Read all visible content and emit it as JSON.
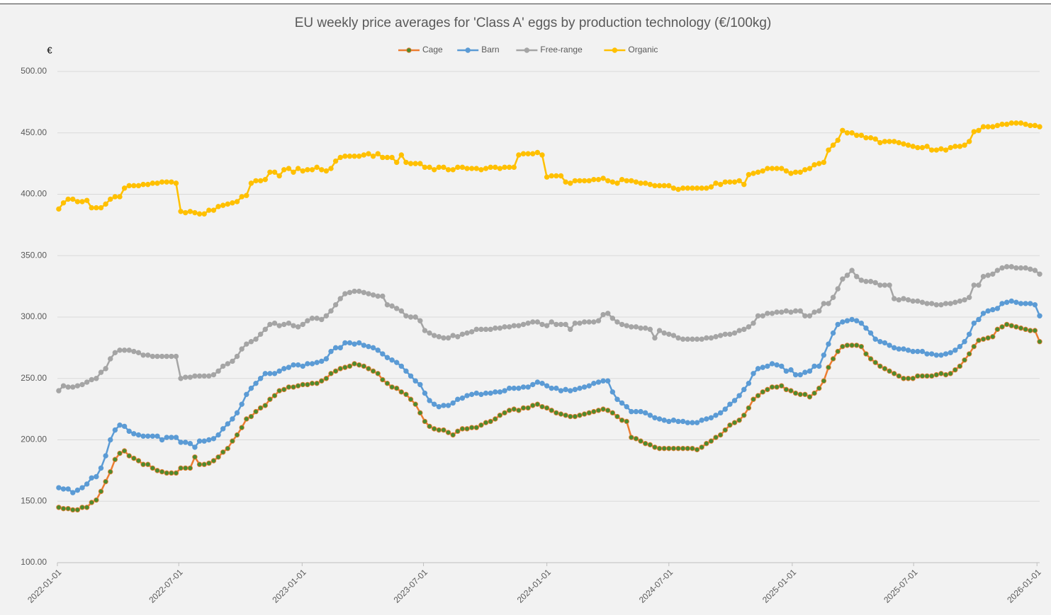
{
  "chart_data": {
    "type": "line",
    "title": "EU weekly price averages for 'Class A' eggs by production technology (€/100kg)",
    "y_label": "€",
    "legend": "top",
    "grid": true,
    "x": [
      "2022-01-03",
      "2022-01-10",
      "2022-01-17",
      "2022-01-24",
      "2022-01-31",
      "2022-02-07",
      "2022-02-14",
      "2022-02-21",
      "2022-02-28",
      "2022-03-07",
      "2022-03-14",
      "2022-03-21",
      "2022-03-28",
      "2022-04-04",
      "2022-04-11",
      "2022-04-18",
      "2022-04-25",
      "2022-05-02",
      "2022-05-09",
      "2022-05-16",
      "2022-05-23",
      "2022-05-30",
      "2022-06-06",
      "2022-06-13",
      "2022-06-20",
      "2022-06-27",
      "2022-07-04",
      "2022-07-11",
      "2022-07-18",
      "2022-07-25",
      "2022-08-01",
      "2022-08-08",
      "2022-08-15",
      "2022-08-22",
      "2022-08-29",
      "2022-09-05",
      "2022-09-12",
      "2022-09-19",
      "2022-09-26",
      "2022-10-03",
      "2022-10-10",
      "2022-10-17",
      "2022-10-24",
      "2022-10-31",
      "2022-11-07",
      "2022-11-14",
      "2022-11-21",
      "2022-11-28",
      "2022-12-05",
      "2022-12-12",
      "2022-12-19",
      "2022-12-26",
      "2023-01-02",
      "2023-01-09",
      "2023-01-16",
      "2023-01-23",
      "2023-01-30",
      "2023-02-06",
      "2023-02-13",
      "2023-02-20",
      "2023-02-27",
      "2023-03-06",
      "2023-03-13",
      "2023-03-20",
      "2023-03-27",
      "2023-04-03",
      "2023-04-10",
      "2023-04-17",
      "2023-04-24",
      "2023-05-01",
      "2023-05-08",
      "2023-05-15",
      "2023-05-22",
      "2023-05-29",
      "2023-06-05",
      "2023-06-12",
      "2023-06-19",
      "2023-06-26",
      "2023-07-03",
      "2023-07-10",
      "2023-07-17",
      "2023-07-24",
      "2023-07-31",
      "2023-08-07",
      "2023-08-14",
      "2023-08-21",
      "2023-08-28",
      "2023-09-04",
      "2023-09-11",
      "2023-09-18",
      "2023-09-25",
      "2023-10-02",
      "2023-10-09",
      "2023-10-16",
      "2023-10-23",
      "2023-10-30",
      "2023-11-06",
      "2023-11-13",
      "2023-11-20",
      "2023-11-27",
      "2023-12-04",
      "2023-12-11",
      "2023-12-18",
      "2023-12-25",
      "2024-01-01",
      "2024-01-08",
      "2024-01-15",
      "2024-01-22",
      "2024-01-29",
      "2024-02-05",
      "2024-02-12",
      "2024-02-19",
      "2024-02-26",
      "2024-03-04",
      "2024-03-11",
      "2024-03-18",
      "2024-03-25",
      "2024-04-01",
      "2024-04-08",
      "2024-04-15",
      "2024-04-22",
      "2024-04-29",
      "2024-05-06",
      "2024-05-13",
      "2024-05-20",
      "2024-05-27",
      "2024-06-03",
      "2024-06-10",
      "2024-06-17",
      "2024-06-24",
      "2024-07-01",
      "2024-07-08",
      "2024-07-15",
      "2024-07-22",
      "2024-07-29",
      "2024-08-05",
      "2024-08-12",
      "2024-08-19",
      "2024-08-26",
      "2024-09-02",
      "2024-09-09",
      "2024-09-16",
      "2024-09-23",
      "2024-09-30",
      "2024-10-07",
      "2024-10-14",
      "2024-10-21",
      "2024-10-28",
      "2024-11-04",
      "2024-11-11",
      "2024-11-18",
      "2024-11-25",
      "2024-12-02",
      "2024-12-09",
      "2024-12-16",
      "2024-12-23",
      "2024-12-30",
      "2025-01-06",
      "2025-01-13",
      "2025-01-20",
      "2025-01-27",
      "2025-02-03",
      "2025-02-10",
      "2025-02-17",
      "2025-02-24",
      "2025-03-03",
      "2025-03-10",
      "2025-03-17",
      "2025-03-24",
      "2025-03-31",
      "2025-04-07",
      "2025-04-14",
      "2025-04-21",
      "2025-04-28",
      "2025-05-05",
      "2025-05-12",
      "2025-05-19",
      "2025-05-26",
      "2025-06-02",
      "2025-06-09",
      "2025-06-16",
      "2025-06-23",
      "2025-06-30",
      "2025-07-07",
      "2025-07-14",
      "2025-07-21",
      "2025-07-28",
      "2025-08-04",
      "2025-08-11",
      "2025-08-18",
      "2025-08-25",
      "2025-09-01",
      "2025-09-08",
      "2025-09-15",
      "2025-09-22",
      "2025-09-29",
      "2025-10-06",
      "2025-10-13",
      "2025-10-20",
      "2025-10-27",
      "2025-11-03",
      "2025-11-10",
      "2025-11-17",
      "2025-11-24",
      "2025-12-01",
      "2025-12-08",
      "2025-12-15",
      "2025-12-22",
      "2025-12-29",
      "2026-01-05"
    ],
    "series": [
      {
        "name": "Cage",
        "color": "#ed7d31",
        "marker_color": "#4e8a2e",
        "values": [
          145,
          144,
          144,
          143,
          143,
          145,
          145,
          149,
          151,
          158,
          166,
          174,
          184,
          189,
          191,
          187,
          185,
          183,
          180,
          180,
          177,
          175,
          174,
          173,
          173,
          173,
          177,
          177,
          177,
          186,
          180,
          180,
          181,
          183,
          186,
          190,
          193,
          199,
          204,
          210,
          217,
          219,
          223,
          226,
          228,
          233,
          236,
          240,
          241,
          243,
          243,
          244,
          245,
          245,
          246,
          246,
          248,
          250,
          254,
          256,
          258,
          259,
          260,
          262,
          261,
          260,
          258,
          256,
          254,
          249,
          246,
          243,
          242,
          239,
          237,
          233,
          229,
          222,
          215,
          211,
          209,
          208,
          208,
          206,
          204,
          207,
          209,
          209,
          210,
          210,
          212,
          214,
          215,
          217,
          220,
          222,
          224,
          225,
          224,
          226,
          226,
          228,
          229,
          227,
          226,
          224,
          222,
          221,
          220,
          219,
          219,
          220,
          221,
          222,
          223,
          224,
          225,
          224,
          222,
          219,
          216,
          215,
          202,
          201,
          199,
          197,
          196,
          194,
          193,
          193,
          193,
          193,
          193,
          193,
          193,
          193,
          192,
          194,
          197,
          199,
          202,
          204,
          208,
          212,
          214,
          216,
          220,
          226,
          233,
          236,
          239,
          241,
          243,
          243,
          244,
          241,
          240,
          238,
          237,
          237,
          235,
          238,
          242,
          248,
          259,
          266,
          272,
          276,
          277,
          277,
          277,
          276,
          270,
          266,
          263,
          260,
          258,
          256,
          254,
          252,
          250,
          250,
          250,
          252,
          252,
          252,
          252,
          253,
          254,
          253,
          254,
          257,
          260,
          265,
          270,
          276,
          281,
          282,
          283,
          284,
          290,
          292,
          294,
          293,
          292,
          291,
          290,
          289,
          289,
          280
        ]
      },
      {
        "name": "Barn",
        "color": "#5b9bd5",
        "marker_color": "#5b9bd5",
        "values": [
          161,
          160,
          160,
          157,
          159,
          161,
          164,
          169,
          170,
          177,
          187,
          200,
          208,
          212,
          211,
          207,
          205,
          204,
          203,
          203,
          203,
          203,
          200,
          202,
          202,
          202,
          198,
          198,
          197,
          194,
          199,
          199,
          200,
          201,
          204,
          209,
          213,
          217,
          222,
          229,
          237,
          242,
          246,
          250,
          254,
          254,
          254,
          256,
          258,
          259,
          261,
          261,
          260,
          262,
          262,
          263,
          264,
          266,
          272,
          275,
          275,
          279,
          279,
          278,
          279,
          277,
          276,
          275,
          273,
          270,
          267,
          265,
          263,
          260,
          256,
          252,
          248,
          245,
          238,
          232,
          229,
          227,
          228,
          228,
          230,
          233,
          234,
          236,
          237,
          238,
          237,
          238,
          238,
          239,
          239,
          240,
          242,
          242,
          242,
          243,
          243,
          245,
          247,
          246,
          244,
          242,
          242,
          240,
          241,
          240,
          241,
          242,
          243,
          244,
          246,
          247,
          248,
          248,
          239,
          233,
          230,
          227,
          223,
          223,
          223,
          222,
          220,
          218,
          217,
          216,
          215,
          216,
          215,
          215,
          214,
          214,
          214,
          216,
          217,
          218,
          220,
          222,
          225,
          229,
          232,
          236,
          241,
          246,
          254,
          258,
          259,
          260,
          262,
          261,
          260,
          256,
          257,
          253,
          253,
          255,
          256,
          260,
          260,
          269,
          278,
          287,
          294,
          296,
          297,
          298,
          297,
          295,
          291,
          287,
          282,
          280,
          279,
          277,
          275,
          274,
          274,
          273,
          272,
          272,
          272,
          270,
          270,
          269,
          269,
          270,
          271,
          273,
          276,
          280,
          286,
          295,
          298,
          303,
          305,
          306,
          307,
          311,
          312,
          313,
          312,
          311,
          311,
          311,
          310,
          301
        ]
      },
      {
        "name": "Free-range",
        "color": "#a5a5a5",
        "marker_color": "#a5a5a5",
        "values": [
          240,
          244,
          243,
          243,
          244,
          245,
          247,
          249,
          250,
          255,
          258,
          266,
          271,
          273,
          273,
          273,
          272,
          271,
          269,
          269,
          268,
          268,
          268,
          268,
          268,
          268,
          250,
          251,
          251,
          252,
          252,
          252,
          252,
          253,
          256,
          260,
          262,
          264,
          268,
          274,
          278,
          280,
          282,
          286,
          290,
          294,
          295,
          293,
          294,
          295,
          293,
          292,
          294,
          297,
          299,
          299,
          298,
          301,
          305,
          310,
          315,
          319,
          320,
          321,
          321,
          320,
          319,
          318,
          317,
          317,
          310,
          309,
          307,
          305,
          301,
          300,
          300,
          297,
          289,
          287,
          285,
          284,
          283,
          283,
          285,
          284,
          286,
          287,
          288,
          290,
          290,
          290,
          290,
          291,
          291,
          292,
          292,
          293,
          293,
          294,
          295,
          296,
          296,
          294,
          293,
          296,
          294,
          294,
          294,
          290,
          295,
          295,
          296,
          296,
          296,
          297,
          302,
          303,
          299,
          296,
          294,
          293,
          292,
          292,
          291,
          291,
          290,
          283,
          289,
          287,
          286,
          285,
          283,
          282,
          282,
          282,
          282,
          282,
          283,
          283,
          284,
          285,
          286,
          286,
          287,
          289,
          290,
          292,
          295,
          301,
          301,
          303,
          303,
          304,
          304,
          305,
          304,
          305,
          305,
          301,
          301,
          304,
          305,
          311,
          311,
          316,
          323,
          331,
          334,
          338,
          333,
          330,
          329,
          329,
          328,
          326,
          326,
          326,
          315,
          314,
          315,
          314,
          313,
          313,
          312,
          311,
          311,
          310,
          310,
          311,
          311,
          312,
          313,
          314,
          316,
          326,
          326,
          333,
          334,
          335,
          338,
          340,
          341,
          341,
          340,
          340,
          340,
          339,
          338,
          335
        ]
      },
      {
        "name": "Organic",
        "color": "#ffc000",
        "marker_color": "#ffc000",
        "values": [
          388,
          393,
          396,
          396,
          394,
          394,
          395,
          389,
          389,
          389,
          392,
          396,
          398,
          398,
          405,
          407,
          407,
          407,
          408,
          408,
          409,
          409,
          410,
          410,
          410,
          409,
          386,
          385,
          386,
          385,
          384,
          384,
          387,
          387,
          390,
          391,
          392,
          393,
          394,
          398,
          399,
          409,
          411,
          411,
          412,
          418,
          418,
          415,
          420,
          421,
          418,
          421,
          419,
          420,
          420,
          422,
          420,
          419,
          421,
          427,
          430,
          431,
          431,
          431,
          431,
          432,
          433,
          431,
          433,
          430,
          430,
          430,
          426,
          432,
          426,
          425,
          425,
          425,
          422,
          422,
          420,
          422,
          422,
          420,
          420,
          422,
          422,
          421,
          421,
          421,
          420,
          421,
          422,
          422,
          421,
          422,
          422,
          422,
          432,
          433,
          433,
          433,
          434,
          432,
          414,
          415,
          415,
          415,
          410,
          409,
          411,
          411,
          411,
          411,
          412,
          412,
          413,
          411,
          410,
          409,
          412,
          411,
          411,
          410,
          409,
          409,
          408,
          407,
          407,
          407,
          407,
          405,
          404,
          405,
          405,
          405,
          405,
          405,
          405,
          406,
          409,
          408,
          410,
          410,
          410,
          411,
          408,
          416,
          417,
          418,
          419,
          421,
          421,
          421,
          421,
          419,
          417,
          418,
          418,
          420,
          421,
          424,
          425,
          426,
          436,
          440,
          444,
          452,
          450,
          450,
          448,
          448,
          446,
          446,
          445,
          442,
          443,
          443,
          443,
          442,
          441,
          440,
          439,
          438,
          438,
          439,
          436,
          436,
          437,
          436,
          438,
          439,
          439,
          440,
          443,
          451,
          452,
          455,
          455,
          455,
          456,
          457,
          457,
          458,
          458,
          458,
          457,
          456,
          456,
          455
        ]
      }
    ],
    "xlim": [
      "2022-01-01",
      "2026-01-05"
    ],
    "xticks": [
      "2022-01-01",
      "2022-07-01",
      "2023-01-01",
      "2023-07-01",
      "2024-01-01",
      "2024-07-01",
      "2025-01-01",
      "2025-07-01",
      "2026-01-01"
    ],
    "ylim": [
      100,
      500
    ],
    "yticks": [
      {
        "value": 100,
        "label": "100.00"
      },
      {
        "value": 150,
        "label": "150.00"
      },
      {
        "value": 200,
        "label": "200.00"
      },
      {
        "value": 250,
        "label": "250.00"
      },
      {
        "value": 300,
        "label": "300.00"
      },
      {
        "value": 350,
        "label": "350.00"
      },
      {
        "value": 400,
        "label": "400.00"
      },
      {
        "value": 450,
        "label": "450.00"
      },
      {
        "value": 500,
        "label": "500.00"
      }
    ]
  }
}
